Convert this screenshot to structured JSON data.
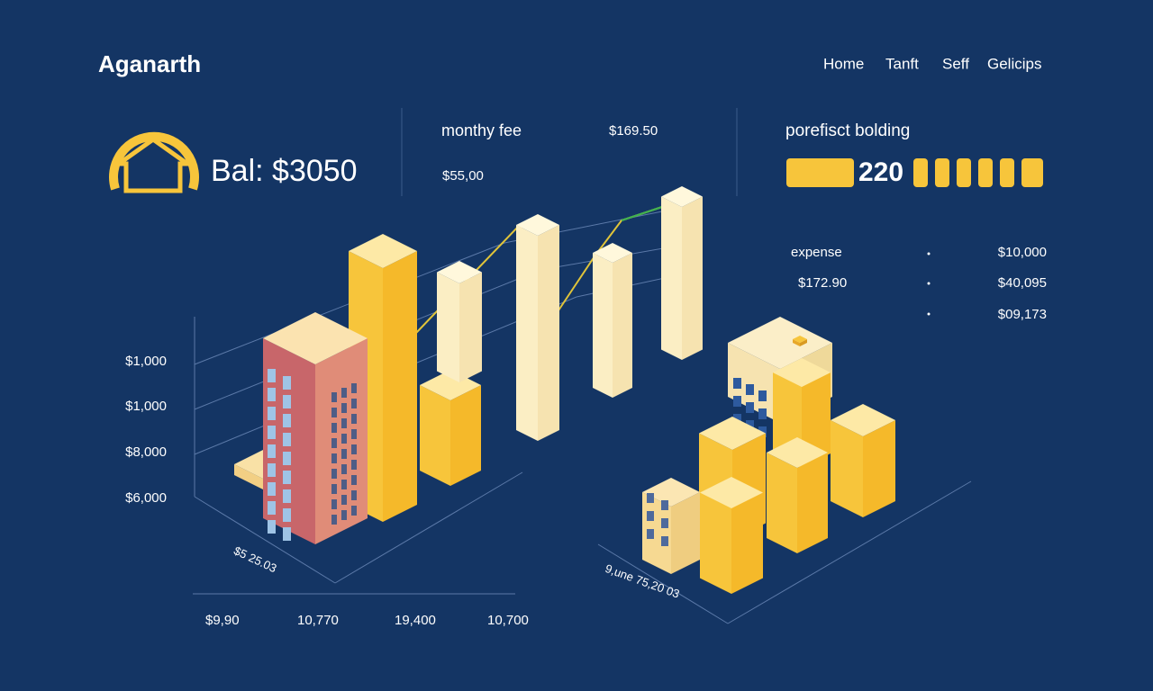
{
  "header": {
    "brand": "Aganarth",
    "nav": [
      "Home",
      "Tanft",
      "Seff",
      "Gelicips"
    ]
  },
  "balance": {
    "text": "Bal: $3050"
  },
  "fee": {
    "label": "monthy fee",
    "amount": "$169.50",
    "sub": "$55,00"
  },
  "building": {
    "label": "porefisct bolding",
    "value": "220"
  },
  "expenses": {
    "title": "expense",
    "title_amount": "$10,000",
    "row": {
      "name": "$172.90",
      "amount": "$40,095"
    },
    "last": "$09,173"
  },
  "left_chart": {
    "y_labels": [
      "$1,000",
      "$1,000",
      "$8,000",
      "$6,000"
    ],
    "x_labels": [
      "$9,90",
      "10,770",
      "19,400",
      "10,700"
    ],
    "axis_note": "$5 25.03"
  },
  "right_chart": {
    "axis_note": "9,une 75,20 03"
  }
}
